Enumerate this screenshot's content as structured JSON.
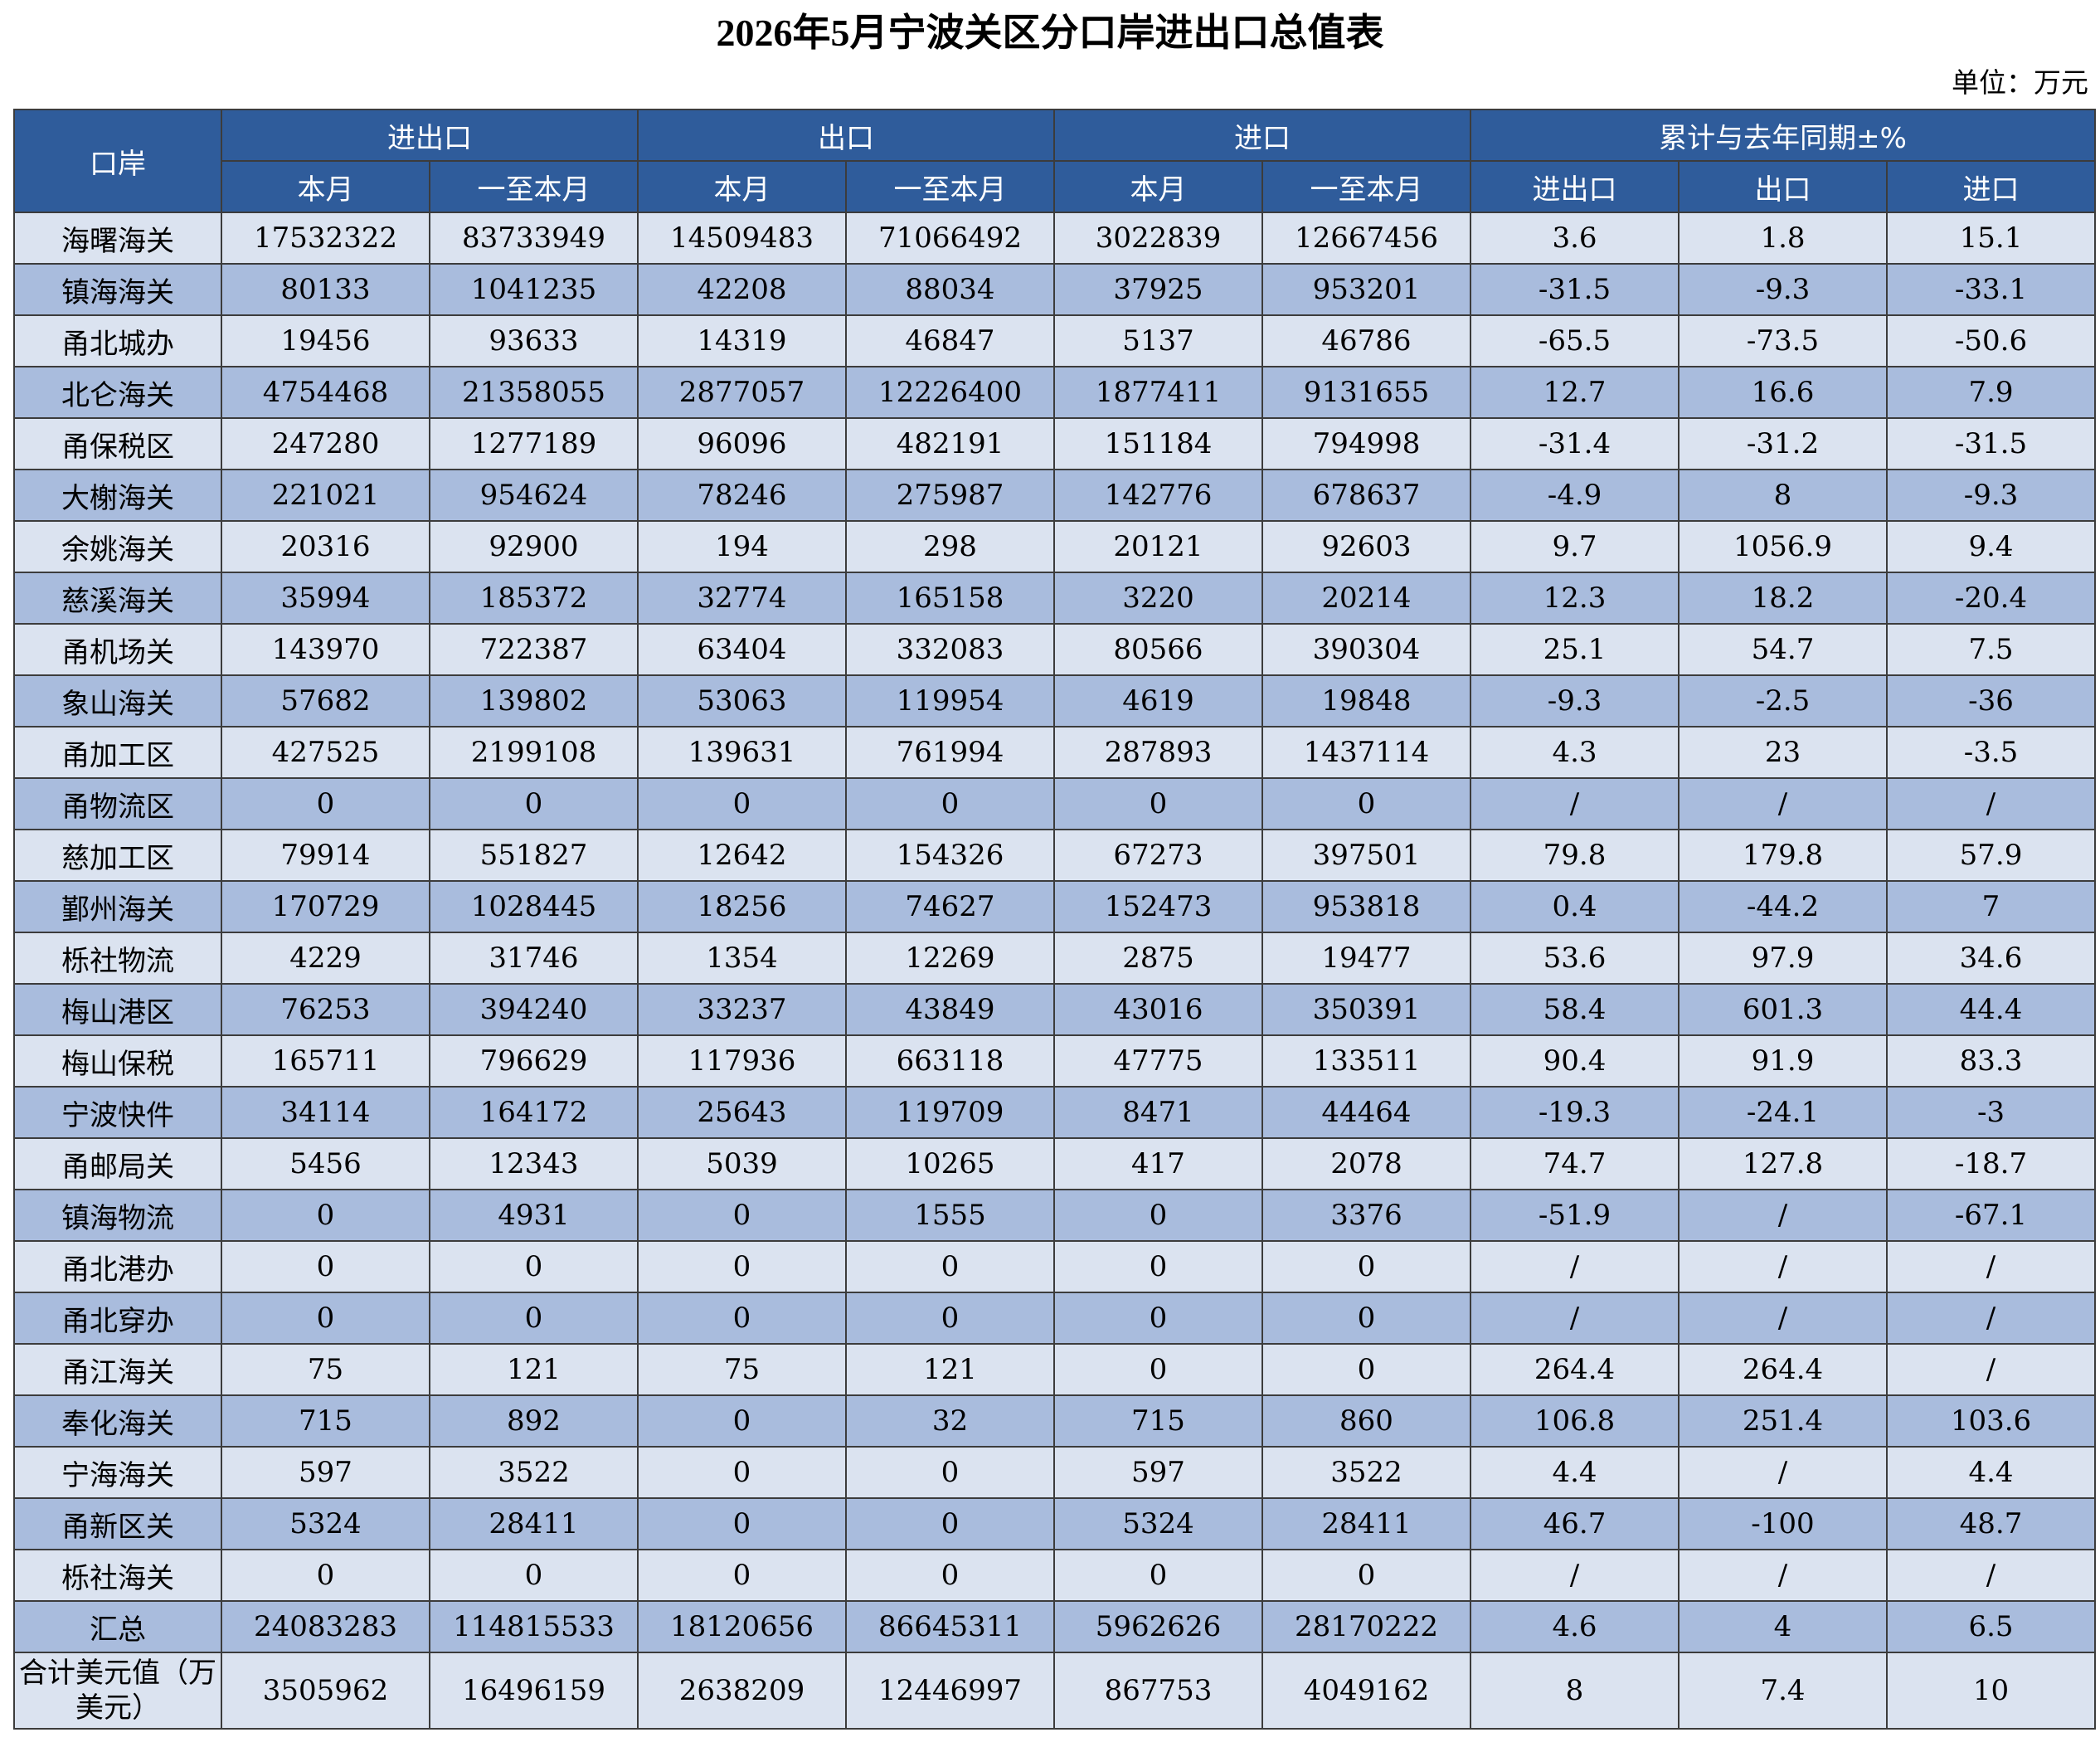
{
  "title": "2026年5月宁波关区分口岸进出口总值表",
  "unit": "单位：万元",
  "headers": {
    "port": "口岸",
    "groups": [
      "进出口",
      "出口",
      "进口",
      "累计与去年同期±%"
    ],
    "sub": [
      "本月",
      "一至本月",
      "本月",
      "一至本月",
      "本月",
      "一至本月",
      "进出口",
      "出口",
      "进口"
    ]
  },
  "rows": [
    {
      "name": "海曙海关",
      "v": [
        "17532322",
        "83733949",
        "14509483",
        "71066492",
        "3022839",
        "12667456",
        "3.6",
        "1.8",
        "15.1"
      ]
    },
    {
      "name": "镇海海关",
      "v": [
        "80133",
        "1041235",
        "42208",
        "88034",
        "37925",
        "953201",
        "-31.5",
        "-9.3",
        "-33.1"
      ]
    },
    {
      "name": "甬北城办",
      "v": [
        "19456",
        "93633",
        "14319",
        "46847",
        "5137",
        "46786",
        "-65.5",
        "-73.5",
        "-50.6"
      ]
    },
    {
      "name": "北仑海关",
      "v": [
        "4754468",
        "21358055",
        "2877057",
        "12226400",
        "1877411",
        "9131655",
        "12.7",
        "16.6",
        "7.9"
      ]
    },
    {
      "name": "甬保税区",
      "v": [
        "247280",
        "1277189",
        "96096",
        "482191",
        "151184",
        "794998",
        "-31.4",
        "-31.2",
        "-31.5"
      ]
    },
    {
      "name": "大榭海关",
      "v": [
        "221021",
        "954624",
        "78246",
        "275987",
        "142776",
        "678637",
        "-4.9",
        "8",
        "-9.3"
      ]
    },
    {
      "name": "余姚海关",
      "v": [
        "20316",
        "92900",
        "194",
        "298",
        "20121",
        "92603",
        "9.7",
        "1056.9",
        "9.4"
      ]
    },
    {
      "name": "慈溪海关",
      "v": [
        "35994",
        "185372",
        "32774",
        "165158",
        "3220",
        "20214",
        "12.3",
        "18.2",
        "-20.4"
      ]
    },
    {
      "name": "甬机场关",
      "v": [
        "143970",
        "722387",
        "63404",
        "332083",
        "80566",
        "390304",
        "25.1",
        "54.7",
        "7.5"
      ]
    },
    {
      "name": "象山海关",
      "v": [
        "57682",
        "139802",
        "53063",
        "119954",
        "4619",
        "19848",
        "-9.3",
        "-2.5",
        "-36"
      ]
    },
    {
      "name": "甬加工区",
      "v": [
        "427525",
        "2199108",
        "139631",
        "761994",
        "287893",
        "1437114",
        "4.3",
        "23",
        "-3.5"
      ]
    },
    {
      "name": "甬物流区",
      "v": [
        "0",
        "0",
        "0",
        "0",
        "0",
        "0",
        "/",
        "/",
        "/"
      ]
    },
    {
      "name": "慈加工区",
      "v": [
        "79914",
        "551827",
        "12642",
        "154326",
        "67273",
        "397501",
        "79.8",
        "179.8",
        "57.9"
      ]
    },
    {
      "name": "鄞州海关",
      "v": [
        "170729",
        "1028445",
        "18256",
        "74627",
        "152473",
        "953818",
        "0.4",
        "-44.2",
        "7"
      ]
    },
    {
      "name": "栎社物流",
      "v": [
        "4229",
        "31746",
        "1354",
        "12269",
        "2875",
        "19477",
        "53.6",
        "97.9",
        "34.6"
      ]
    },
    {
      "name": "梅山港区",
      "v": [
        "76253",
        "394240",
        "33237",
        "43849",
        "43016",
        "350391",
        "58.4",
        "601.3",
        "44.4"
      ]
    },
    {
      "name": "梅山保税",
      "v": [
        "165711",
        "796629",
        "117936",
        "663118",
        "47775",
        "133511",
        "90.4",
        "91.9",
        "83.3"
      ]
    },
    {
      "name": "宁波快件",
      "v": [
        "34114",
        "164172",
        "25643",
        "119709",
        "8471",
        "44464",
        "-19.3",
        "-24.1",
        "-3"
      ]
    },
    {
      "name": "甬邮局关",
      "v": [
        "5456",
        "12343",
        "5039",
        "10265",
        "417",
        "2078",
        "74.7",
        "127.8",
        "-18.7"
      ]
    },
    {
      "name": "镇海物流",
      "v": [
        "0",
        "4931",
        "0",
        "1555",
        "0",
        "3376",
        "-51.9",
        "/",
        "-67.1"
      ]
    },
    {
      "name": "甬北港办",
      "v": [
        "0",
        "0",
        "0",
        "0",
        "0",
        "0",
        "/",
        "/",
        "/"
      ]
    },
    {
      "name": "甬北穿办",
      "v": [
        "0",
        "0",
        "0",
        "0",
        "0",
        "0",
        "/",
        "/",
        "/"
      ]
    },
    {
      "name": "甬江海关",
      "v": [
        "75",
        "121",
        "75",
        "121",
        "0",
        "0",
        "264.4",
        "264.4",
        "/"
      ]
    },
    {
      "name": "奉化海关",
      "v": [
        "715",
        "892",
        "0",
        "32",
        "715",
        "860",
        "106.8",
        "251.4",
        "103.6"
      ]
    },
    {
      "name": "宁海海关",
      "v": [
        "597",
        "3522",
        "0",
        "0",
        "597",
        "3522",
        "4.4",
        "/",
        "4.4"
      ]
    },
    {
      "name": "甬新区关",
      "v": [
        "5324",
        "28411",
        "0",
        "0",
        "5324",
        "28411",
        "46.7",
        "-100",
        "48.7"
      ]
    },
    {
      "name": "栎社海关",
      "v": [
        "0",
        "0",
        "0",
        "0",
        "0",
        "0",
        "/",
        "/",
        "/"
      ]
    }
  ],
  "summary": {
    "name": "汇总",
    "v": [
      "24083283",
      "114815533",
      "18120656",
      "86645311",
      "5962626",
      "28170222",
      "4.6",
      "4",
      "6.5"
    ]
  },
  "usd": {
    "name": "合计美元值（万美元）",
    "v": [
      "3505962",
      "16496159",
      "2638209",
      "12446997",
      "867753",
      "4049162",
      "8",
      "7.4",
      "10"
    ]
  }
}
